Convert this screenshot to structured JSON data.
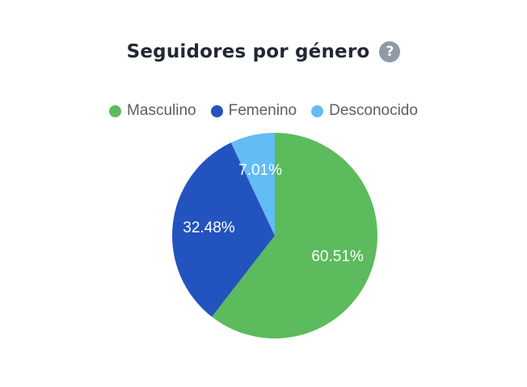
{
  "header": {
    "title": "Seguidores por género",
    "help_icon": "question-circle-icon",
    "help_glyph": "?"
  },
  "colors": {
    "Masculino": "#5cbb5c",
    "Femenino": "#2353bf",
    "Desconocido": "#64bcf4"
  },
  "chart_data": {
    "type": "pie",
    "title": "Seguidores por género",
    "legend_position": "top",
    "categories": [
      "Masculino",
      "Femenino",
      "Desconocido"
    ],
    "values": [
      60.51,
      32.48,
      7.01
    ],
    "labels": [
      "60.51%",
      "32.48%",
      "7.01%"
    ],
    "colors": [
      "#5cbb5c",
      "#2353bf",
      "#64bcf4"
    ]
  }
}
